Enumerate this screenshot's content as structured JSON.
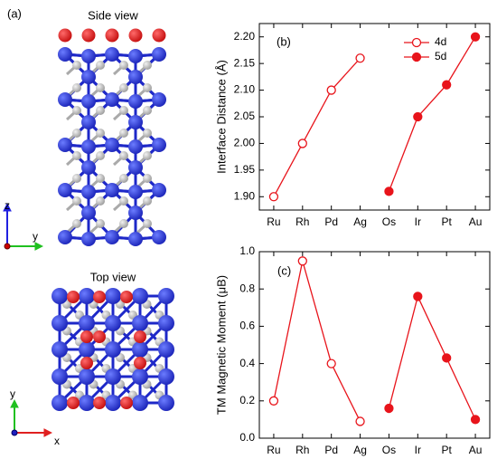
{
  "panel_a": {
    "label": "(a)",
    "side_title": "Side view",
    "top_title": "Top view",
    "side_axes": {
      "vertical": "z",
      "horizontal": "y"
    },
    "top_axes": {
      "vertical": "y",
      "horizontal": "x"
    }
  },
  "chart_data": [
    {
      "type": "line",
      "panel_label": "(b)",
      "y_label": "Interface Distance (Å)",
      "categories": [
        "Ru",
        "Rh",
        "Pd",
        "Ag",
        "Os",
        "Ir",
        "Pt",
        "Au"
      ],
      "series": [
        {
          "name": "4d",
          "color": "#e8141b",
          "marker_filled": false,
          "values": [
            1.9,
            2.0,
            2.1,
            2.16,
            null,
            null,
            null,
            null
          ]
        },
        {
          "name": "5d",
          "color": "#e8141b",
          "marker_filled": true,
          "values": [
            null,
            null,
            null,
            null,
            1.91,
            2.05,
            2.11,
            2.2
          ]
        }
      ],
      "ylim": [
        1.875,
        2.225
      ],
      "yticks": [
        {
          "value": 1.9,
          "label": "1.90"
        },
        1.95,
        {
          "value": 2.0,
          "label": "2.00"
        },
        2.05,
        {
          "value": 2.1,
          "label": "2.10"
        },
        2.15,
        {
          "value": 2.2,
          "label": "2.20"
        }
      ],
      "legend": "upper right"
    },
    {
      "type": "line",
      "panel_label": "(c)",
      "y_label": "TM Magnetic Moment (μB)",
      "categories": [
        "Ru",
        "Rh",
        "Pd",
        "Ag",
        "Os",
        "Ir",
        "Pt",
        "Au"
      ],
      "series": [
        {
          "color": "#e8141b",
          "marker_filled": false,
          "values": [
            0.2,
            0.95,
            0.4,
            0.09,
            null,
            null,
            null,
            null
          ]
        },
        {
          "color": "#e8141b",
          "marker_filled": true,
          "values": [
            null,
            null,
            null,
            null,
            0.16,
            0.76,
            0.43,
            0.1
          ]
        }
      ],
      "ylim": [
        0,
        1
      ],
      "yticks": [
        {
          "value": 0,
          "label": "0.0"
        },
        0.2,
        0.4,
        0.6,
        0.8,
        {
          "value": 1,
          "label": "1.0"
        }
      ]
    }
  ]
}
